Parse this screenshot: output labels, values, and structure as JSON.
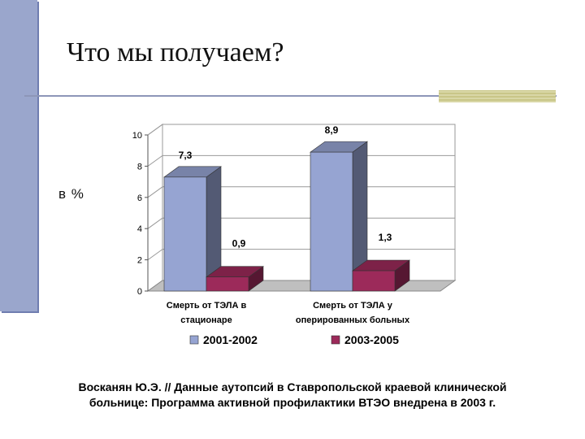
{
  "slide": {
    "title": "Что мы получаем?",
    "unit_label": "в %",
    "caption_line1": "Восканян Ю.Э. // Данные аутопсий в Ставропольской краевой клинической",
    "caption_line2": "больнице: Программа активной профилактики ВТЭО внедрена в 2003 г."
  },
  "colors": {
    "sidebar": "#9aa6cc",
    "series_1": "#96a4d2",
    "series_2": "#9c2a5a"
  },
  "chart_data": {
    "type": "bar",
    "categories": [
      [
        "Смерть от ТЭЛА в",
        "стационаре"
      ],
      [
        "Смерть от ТЭЛА у",
        "оперированных больных"
      ]
    ],
    "series": [
      {
        "name": "2001-2002",
        "values": [
          7.3,
          8.9
        ],
        "labels": [
          "7,3",
          "8,9"
        ]
      },
      {
        "name": "2003-2005",
        "values": [
          0.9,
          1.3
        ],
        "labels": [
          "0,9",
          "1,3"
        ]
      }
    ],
    "ylim": [
      0,
      10
    ],
    "yticks": [
      "0",
      "2",
      "4",
      "6",
      "8",
      "10"
    ],
    "grid": true,
    "legend_position": "bottom",
    "style": "3d"
  }
}
